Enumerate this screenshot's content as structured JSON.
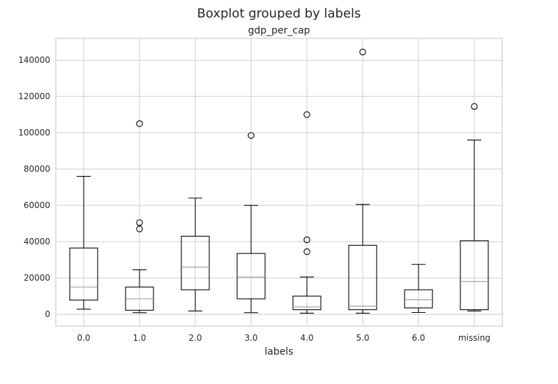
{
  "chart_data": {
    "type": "boxplot",
    "suptitle": "Boxplot grouped by labels",
    "title": "gdp_per_cap",
    "xlabel": "labels",
    "ylabel": "",
    "ylim": [
      -6500,
      152000
    ],
    "yticks": [
      0,
      20000,
      40000,
      60000,
      80000,
      100000,
      120000,
      140000
    ],
    "grid": true,
    "colors": {
      "box": "#000000",
      "median": "#999999",
      "grid": "#cccccc",
      "axes": "#cccccc"
    },
    "categories": [
      "0.0",
      "1.0",
      "2.0",
      "3.0",
      "4.0",
      "5.0",
      "6.0",
      "missing"
    ],
    "boxes": [
      {
        "label": "0.0",
        "whislo": 2800,
        "q1": 7800,
        "med": 15000,
        "q3": 36500,
        "whishi": 76000,
        "fliers": []
      },
      {
        "label": "1.0",
        "whislo": 900,
        "q1": 2200,
        "med": 8500,
        "q3": 15000,
        "whishi": 24500,
        "fliers": [
          47000,
          50500,
          105000
        ]
      },
      {
        "label": "2.0",
        "whislo": 1800,
        "q1": 13500,
        "med": 26000,
        "q3": 43000,
        "whishi": 64000,
        "fliers": []
      },
      {
        "label": "3.0",
        "whislo": 900,
        "q1": 8500,
        "med": 20500,
        "q3": 33500,
        "whishi": 60000,
        "fliers": [
          98500
        ]
      },
      {
        "label": "4.0",
        "whislo": 600,
        "q1": 2500,
        "med": 4000,
        "q3": 10000,
        "whishi": 20500,
        "fliers": [
          34500,
          41000,
          110000
        ]
      },
      {
        "label": "5.0",
        "whislo": 600,
        "q1": 2500,
        "med": 4500,
        "q3": 38000,
        "whishi": 60500,
        "fliers": [
          144500
        ]
      },
      {
        "label": "6.0",
        "whislo": 1000,
        "q1": 3500,
        "med": 8000,
        "q3": 13500,
        "whishi": 27500,
        "fliers": []
      },
      {
        "label": "missing",
        "whislo": 1800,
        "q1": 2500,
        "med": 18000,
        "q3": 40500,
        "whishi": 96000,
        "fliers": [
          114500
        ]
      }
    ]
  }
}
